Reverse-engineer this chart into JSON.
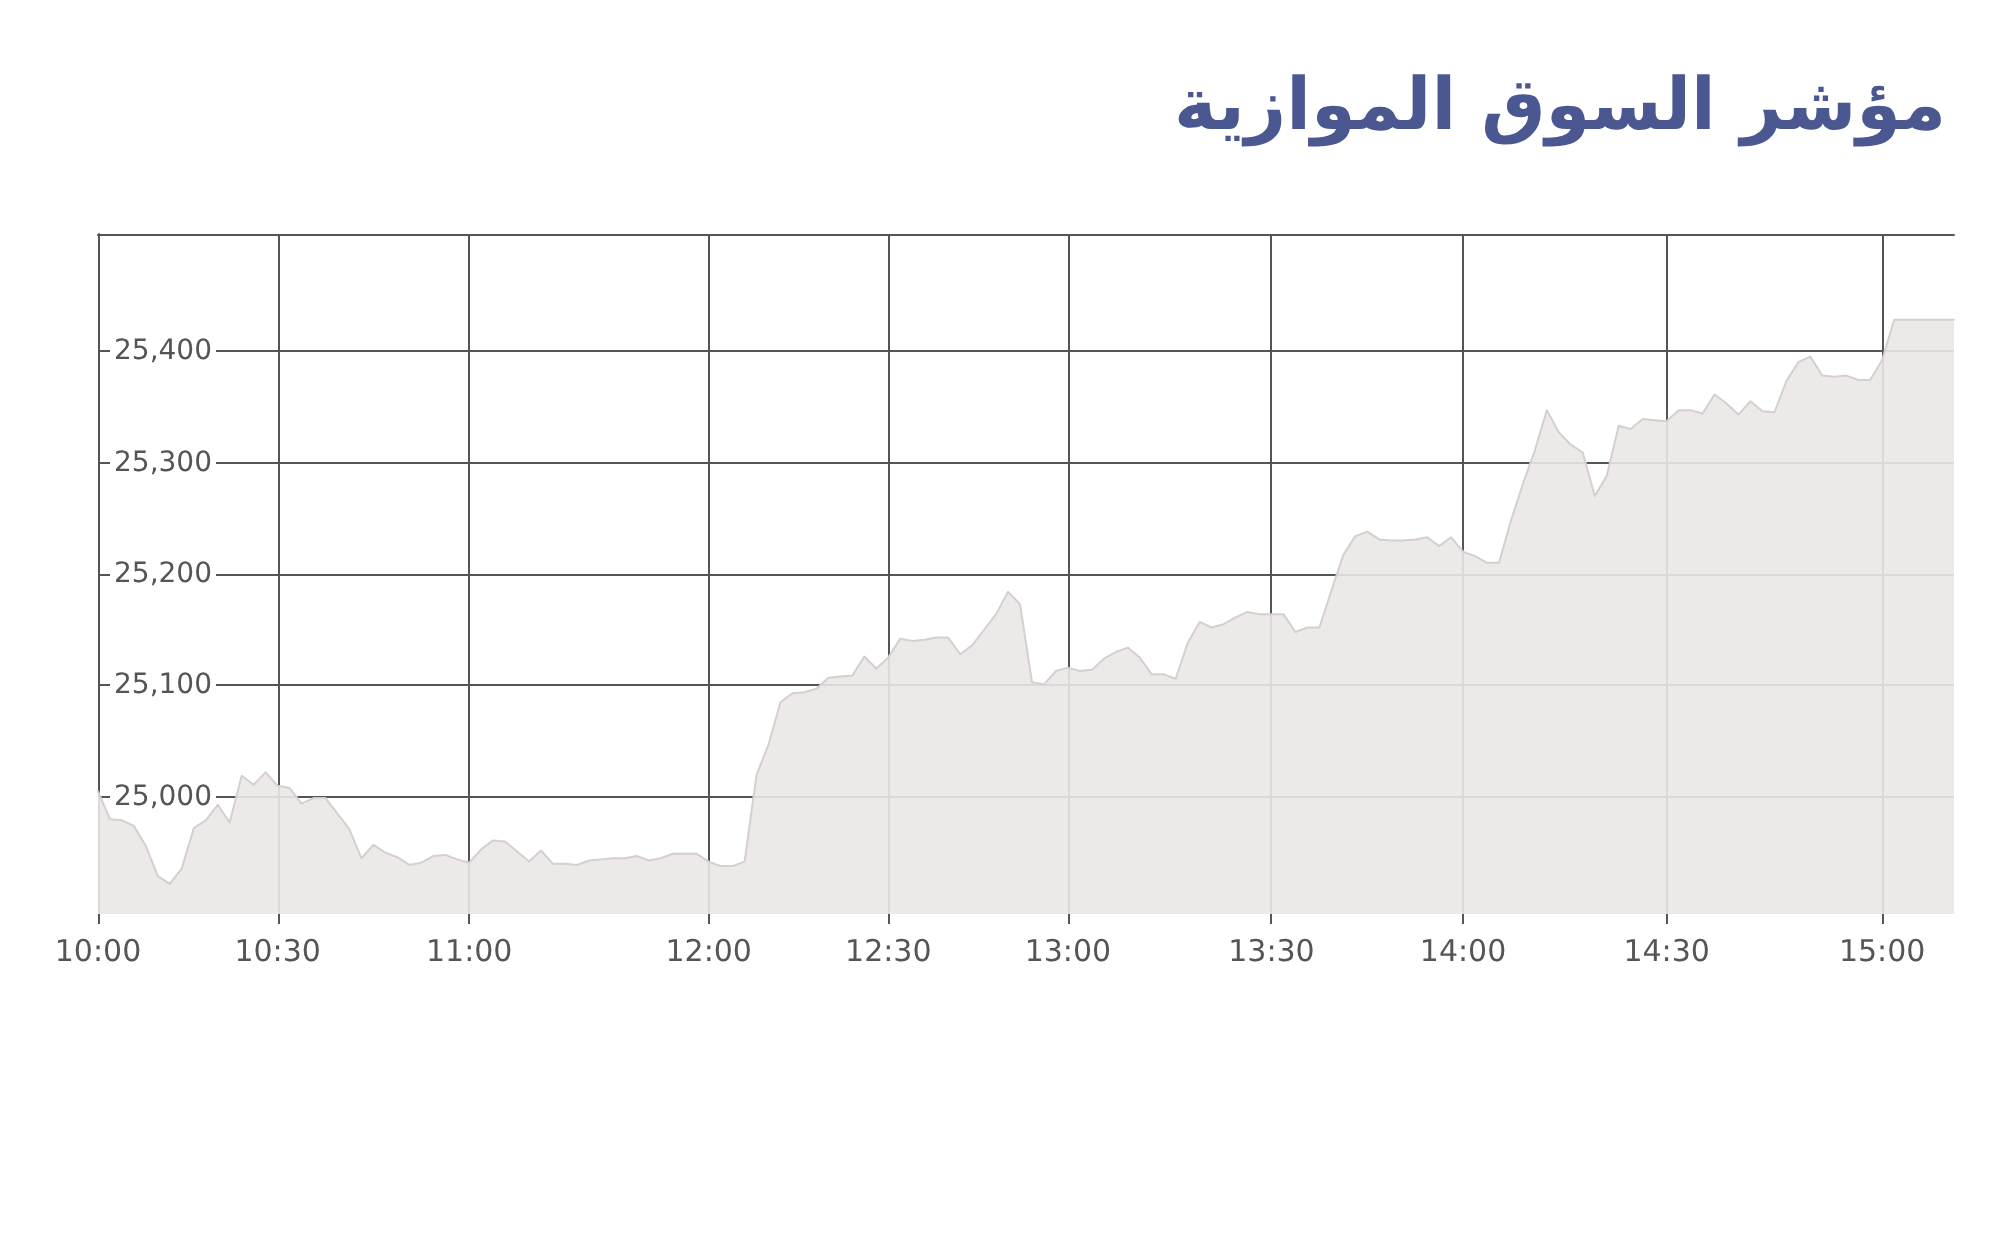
{
  "chart_data": {
    "type": "area",
    "title": "مؤشر السوق الموازية",
    "categories": [
      "10:00",
      null,
      null,
      null,
      null,
      null,
      null,
      null,
      null,
      null,
      null,
      null,
      null,
      null,
      null,
      "10:30",
      null,
      null,
      null,
      null,
      null,
      null,
      null,
      null,
      null,
      null,
      null,
      null,
      null,
      null,
      null,
      "11:00",
      null,
      null,
      null,
      null,
      null,
      null,
      null,
      null,
      null,
      null,
      null,
      null,
      null,
      null,
      null,
      null,
      null,
      null,
      null,
      "12:00",
      null,
      null,
      null,
      null,
      null,
      null,
      null,
      null,
      null,
      null,
      null,
      null,
      null,
      null,
      "12:30",
      null,
      null,
      null,
      null,
      null,
      null,
      null,
      null,
      null,
      null,
      null,
      null,
      null,
      null,
      "13:00",
      null,
      null,
      null,
      null,
      null,
      null,
      null,
      null,
      null,
      null,
      null,
      null,
      null,
      null,
      null,
      null,
      "13:30",
      null,
      null,
      null,
      null,
      null,
      null,
      null,
      null,
      null,
      null,
      null,
      null,
      null,
      null,
      null,
      "14:00",
      null,
      null,
      null,
      null,
      null,
      null,
      null,
      null,
      null,
      null,
      null,
      null,
      null,
      null,
      null,
      null,
      "14:30",
      null,
      null,
      null,
      null,
      null,
      null,
      null,
      null,
      null,
      null,
      null,
      null,
      null,
      null,
      null,
      null,
      null,
      "15:00",
      null,
      null,
      null,
      null,
      null,
      null
    ],
    "values": [
      25005,
      24980,
      24979,
      24974,
      24956,
      24929,
      24922,
      24936,
      24972,
      24979,
      24993,
      24977,
      25019,
      25011,
      25022,
      25010,
      25008,
      24994,
      24999,
      24999,
      24985,
      24971,
      24945,
      24957,
      24950,
      24946,
      24939,
      24941,
      24947,
      24948,
      24944,
      24941,
      24953,
      24961,
      24960,
      24951,
      24942,
      24952,
      24940,
      24940,
      24939,
      24943,
      24944,
      24945,
      24945,
      24947,
      24943,
      24945,
      24949,
      24949,
      24949,
      24942,
      24938,
      24938,
      24942,
      25020,
      25047,
      25085,
      25093,
      25094,
      25097,
      25107,
      25108,
      25109,
      25126,
      25115,
      25125,
      25142,
      25140,
      25141,
      25143,
      25143,
      25128,
      25136,
      25150,
      25164,
      25184,
      25173,
      25103,
      25101,
      25113,
      25116,
      25113,
      25114,
      25124,
      25130,
      25134,
      25125,
      25110,
      25110,
      25106,
      25138,
      25157,
      25152,
      25155,
      25161,
      25166,
      25164,
      25164,
      25164,
      25148,
      25152,
      25152,
      25185,
      25217,
      25234,
      25238,
      25231,
      25230,
      25230,
      25231,
      25233,
      25225,
      25233,
      25220,
      25216,
      25210,
      25210,
      25248,
      25281,
      25311,
      25347,
      25327,
      25316,
      25309,
      25270,
      25288,
      25333,
      25330,
      25339,
      25338,
      25337,
      25347,
      25347,
      25344,
      25361,
      25353,
      25343,
      25355,
      25346,
      25345,
      25373,
      25390,
      25395,
      25378,
      25377,
      25378,
      25374,
      25374,
      25392,
      25428,
      25428,
      25428,
      25428,
      25428,
      25428
    ],
    "color": "#ebe7e6",
    "ylim": [
      24895,
      25505
    ],
    "yticks": [
      {
        "value": 25000,
        "label": "25,000"
      },
      {
        "value": 25100,
        "label": "25,100"
      },
      {
        "value": 25200,
        "label": "25,200"
      },
      {
        "value": 25300,
        "label": "25,300"
      },
      {
        "value": 25400,
        "label": "25,400"
      }
    ],
    "grid": true
  }
}
